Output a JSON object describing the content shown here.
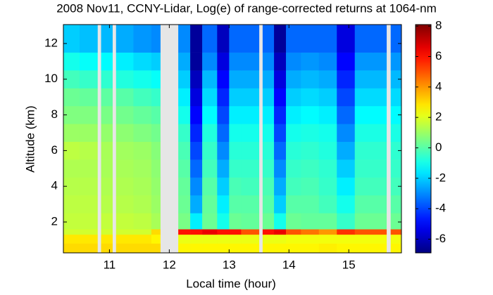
{
  "chart_data": {
    "type": "heatmap",
    "title": "2008 Nov11, CCNY-Lidar, Log(e) of range-corrected returns at 1064-nm",
    "x_label": "Local time (hour)",
    "y_label": "Altitude (km)",
    "colormap": "jet",
    "missing_color": "#e6e6e6",
    "x_edges": [
      10.23,
      10.5,
      10.8,
      10.86,
      11.05,
      11.11,
      11.4,
      11.7,
      11.85,
      12.15,
      12.35,
      12.55,
      12.8,
      13.0,
      13.2,
      13.5,
      13.56,
      13.75,
      13.95,
      14.2,
      14.5,
      14.8,
      15.1,
      15.4,
      15.63,
      15.7,
      15.88
    ],
    "y_edges": [
      0.27,
      0.8,
      1.3,
      1.6,
      2.5,
      3.5,
      4.5,
      5.5,
      6.5,
      7.5,
      8.5,
      9.5,
      10.5,
      11.5,
      13.06
    ],
    "z": [
      [
        3,
        3,
        null,
        3,
        null,
        3,
        3,
        3,
        null,
        2.6,
        2.6,
        2.6,
        2.6,
        2.6,
        2.6,
        null,
        2.6,
        2.6,
        2.6,
        2.6,
        2.7,
        2.6,
        2.6,
        2.6,
        null,
        2.6
      ],
      [
        2.8,
        2.8,
        null,
        2.8,
        null,
        2.8,
        2.8,
        2.6,
        null,
        2.2,
        2.2,
        2.2,
        2.2,
        2.2,
        2.2,
        null,
        2.2,
        2.2,
        2.3,
        2.3,
        2.3,
        2.3,
        2.3,
        2.3,
        null,
        2.3
      ],
      [
        1.8,
        1.8,
        null,
        1.8,
        null,
        1.8,
        1.8,
        3,
        null,
        6,
        6,
        6.5,
        6,
        6,
        5,
        null,
        6,
        6.5,
        5,
        4.5,
        4,
        5.5,
        5,
        5,
        null,
        5
      ],
      [
        1.6,
        1.6,
        null,
        1.6,
        null,
        1.6,
        1.5,
        1.2,
        null,
        0.5,
        -1.5,
        0.3,
        -1,
        0.3,
        0.2,
        null,
        0.3,
        -1,
        0.3,
        0.2,
        0.2,
        -0.5,
        0.3,
        0.3,
        null,
        0.3
      ],
      [
        1.5,
        1.5,
        null,
        1.4,
        null,
        1.4,
        1.3,
        1.0,
        null,
        0.3,
        -2.5,
        0.2,
        -1.5,
        0,
        0,
        null,
        0,
        -2,
        0,
        0,
        -0.3,
        -1,
        0,
        0,
        null,
        0
      ],
      [
        1.4,
        1.4,
        null,
        1.3,
        null,
        1.3,
        1.2,
        0.9,
        null,
        0.2,
        -3,
        0,
        -2,
        -0.2,
        -0.3,
        null,
        -0.2,
        -2.5,
        -0.3,
        -0.2,
        -0.5,
        -1.5,
        -0.3,
        -0.3,
        null,
        -0.3
      ],
      [
        1.3,
        1.3,
        null,
        1.2,
        null,
        1.2,
        1.1,
        0.8,
        null,
        0,
        -3.5,
        -0.3,
        -2.5,
        -0.5,
        -0.5,
        null,
        -0.5,
        -3,
        -0.5,
        -0.4,
        -0.6,
        -2,
        -0.5,
        -0.5,
        null,
        -0.5
      ],
      [
        1.5,
        1.4,
        null,
        1.2,
        null,
        1.1,
        1.0,
        0.7,
        null,
        -0.2,
        -4,
        -0.5,
        -3,
        -0.7,
        -0.7,
        null,
        -0.7,
        -3.5,
        -0.7,
        -0.6,
        -0.8,
        -2.5,
        -0.6,
        -0.6,
        null,
        -0.6
      ],
      [
        1.0,
        1.0,
        null,
        0.9,
        null,
        0.8,
        0.6,
        0.4,
        null,
        -0.5,
        -4.5,
        -0.8,
        -3.5,
        -1,
        -1,
        null,
        -1,
        -4,
        -1,
        -0.9,
        -1,
        -3,
        -0.9,
        -0.9,
        null,
        -0.9
      ],
      [
        0.6,
        0.6,
        null,
        0.5,
        null,
        0.4,
        0.2,
        0,
        null,
        -1,
        -5,
        -1.3,
        -4,
        -1.5,
        -1.5,
        null,
        -1.5,
        -4.5,
        -1.5,
        -1.3,
        -1.5,
        -3.5,
        -1.3,
        -1.3,
        null,
        -1.3
      ],
      [
        0.3,
        0.2,
        null,
        0.1,
        null,
        0,
        -0.3,
        -0.5,
        null,
        -1.5,
        -5.5,
        -1.8,
        -4.5,
        -2,
        -2,
        null,
        -2,
        -5,
        -2,
        -1.8,
        -2,
        -4,
        -1.8,
        -1.8,
        null,
        -1.8
      ],
      [
        -0.3,
        -0.5,
        null,
        -0.6,
        null,
        -0.8,
        -1,
        -1.2,
        null,
        -2,
        -6,
        -2.3,
        -5,
        -2.5,
        -2.5,
        null,
        -2.5,
        -5.5,
        -2.5,
        -2.3,
        -2.5,
        -4.5,
        -2.3,
        -2.3,
        null,
        -2.3
      ],
      [
        -1,
        -1.2,
        null,
        -1.3,
        null,
        -1.5,
        -1.8,
        -2,
        null,
        -2.5,
        -6.5,
        -3,
        -5.5,
        -3,
        -3,
        null,
        -3,
        -6,
        -3,
        -2.8,
        -3,
        -5,
        -2.8,
        -2.8,
        null,
        -2.8
      ],
      [
        -2,
        -2.2,
        null,
        -2.3,
        null,
        -2.5,
        -2.8,
        -3,
        null,
        -3,
        -6.5,
        -3.5,
        -6,
        -3.5,
        -3.5,
        null,
        -3.5,
        -6.5,
        -3.5,
        -3.5,
        -3.5,
        -5.5,
        -3.5,
        -3.5,
        null,
        -3.5
      ]
    ],
    "xlim": [
      10.23,
      15.88
    ],
    "xticks": [
      11,
      12,
      13,
      14,
      15
    ],
    "ylim": [
      0.27,
      13.06
    ],
    "yticks": [
      2,
      4,
      6,
      8,
      10,
      12
    ],
    "zlim": [
      -6.9,
      8.1
    ],
    "zticks": [
      -6,
      -4,
      -2,
      0,
      2,
      4,
      6,
      8
    ]
  }
}
